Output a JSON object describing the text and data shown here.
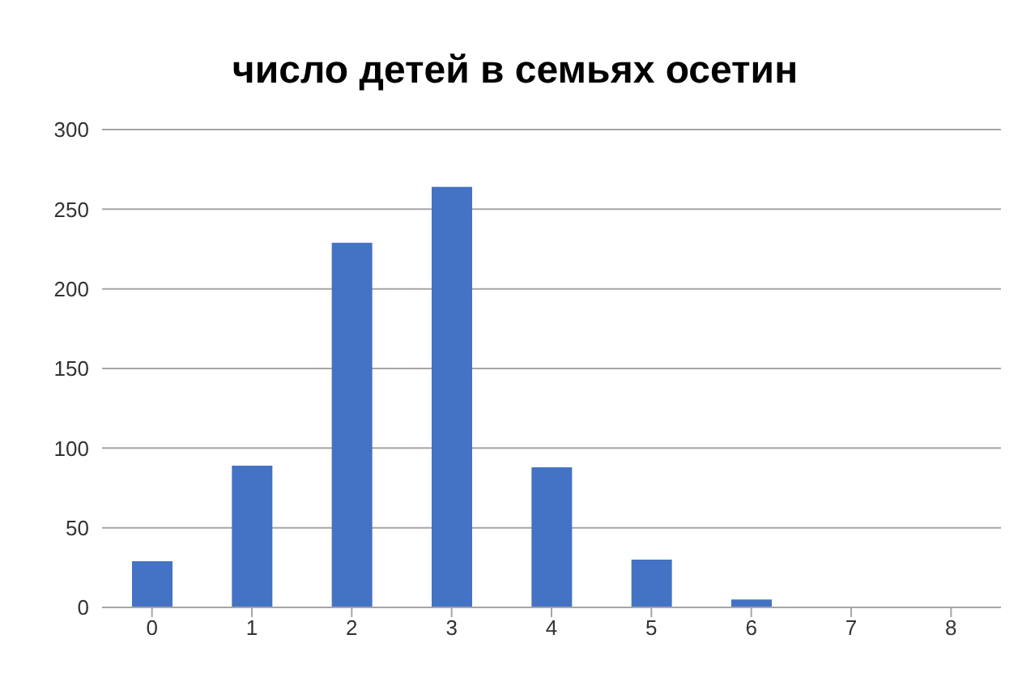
{
  "chart_data": {
    "type": "bar",
    "title": "число детей в семьях осетин",
    "categories": [
      "0",
      "1",
      "2",
      "3",
      "4",
      "5",
      "6",
      "7",
      "8"
    ],
    "values": [
      29,
      89,
      229,
      264,
      88,
      30,
      5,
      0,
      0
    ],
    "color": "#4472c4",
    "ylim": [
      0,
      300
    ],
    "yticks": [
      0,
      50,
      100,
      150,
      200,
      250,
      300
    ],
    "grid": "y"
  }
}
